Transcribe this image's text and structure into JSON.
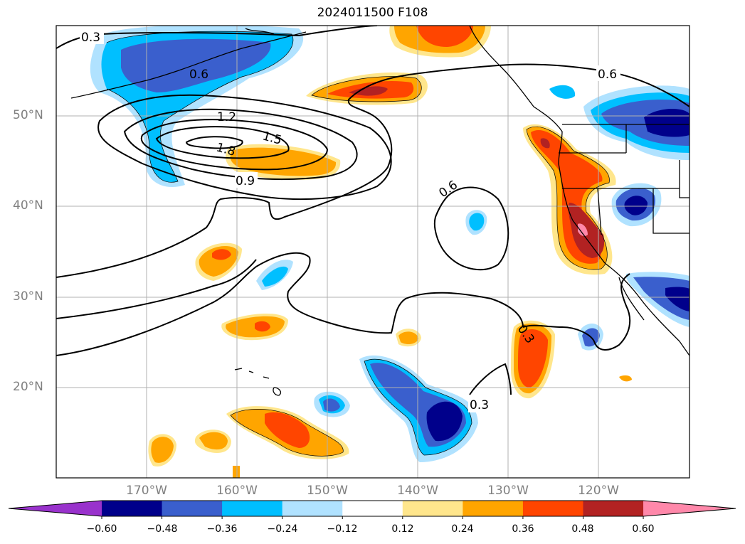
{
  "title": "2024011500 F108",
  "axes": {
    "lat_labels": [
      "50°N",
      "40°N",
      "30°N",
      "20°N"
    ],
    "lon_labels": [
      "170°W",
      "160°W",
      "150°W",
      "140°W",
      "130°W",
      "120°W"
    ]
  },
  "contour_labels": [
    "0.3",
    "0.6",
    "0.9",
    "1.2",
    "1.5",
    "1.8",
    "0.6",
    "0.6",
    "0.3",
    "0.3"
  ],
  "colorbar": {
    "ticks": [
      "−0.60",
      "−0.48",
      "−0.36",
      "−0.24",
      "−0.12",
      "0.12",
      "0.24",
      "0.36",
      "0.48",
      "0.60"
    ],
    "colors": [
      "#9932cc",
      "#00008b",
      "#3a5fcd",
      "#00bfff",
      "#b0e2ff",
      "#ffffff",
      "#ffe68c",
      "#ffa500",
      "#ff4500",
      "#b22222",
      "#ff88aa"
    ]
  },
  "colors": {
    "neg_light": "#b0e2ff",
    "neg_mid": "#00bfff",
    "neg_strong": "#3a5fcd",
    "neg_max": "#00008b",
    "pos_light": "#ffe68c",
    "pos_mid": "#ffa500",
    "pos_strong": "#ff4500",
    "pos_max": "#b22222",
    "pos_extreme": "#ff88aa"
  }
}
